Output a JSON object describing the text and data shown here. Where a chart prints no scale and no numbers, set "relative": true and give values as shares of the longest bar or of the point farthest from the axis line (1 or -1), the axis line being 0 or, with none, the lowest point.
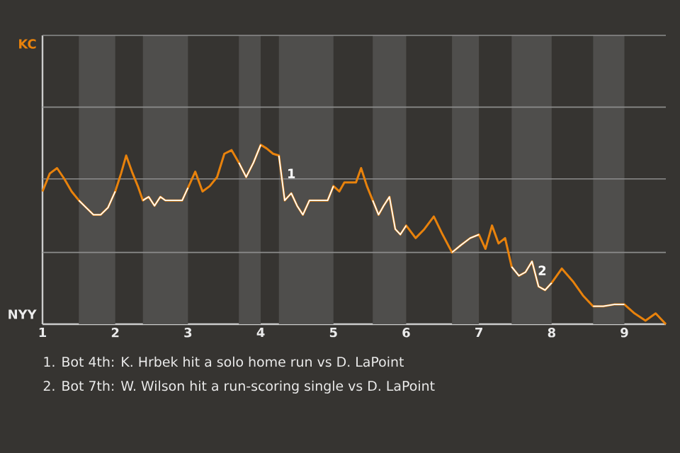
{
  "chart_data": {
    "type": "line",
    "relative": true,
    "xlim": [
      1,
      9.57
    ],
    "xticks": [
      1,
      2,
      3,
      4,
      5,
      6,
      7,
      8,
      9
    ],
    "x": [
      1,
      1.1,
      1.2,
      1.3,
      1.4,
      1.5,
      1.6,
      1.7,
      1.8,
      1.9,
      2,
      2.08,
      2.15,
      2.23,
      2.31,
      2.38,
      2.46,
      2.54,
      2.62,
      2.69,
      2.77,
      2.85,
      2.92,
      3,
      3.1,
      3.2,
      3.3,
      3.4,
      3.5,
      3.6,
      3.7,
      3.8,
      3.9,
      4,
      4.08,
      4.17,
      4.25,
      4.33,
      4.42,
      4.5,
      4.58,
      4.67,
      4.75,
      4.83,
      4.92,
      5,
      5.08,
      5.15,
      5.23,
      5.31,
      5.38,
      5.46,
      5.54,
      5.62,
      5.69,
      5.77,
      5.85,
      5.92,
      6,
      6.13,
      6.25,
      6.38,
      6.5,
      6.63,
      6.75,
      6.88,
      7,
      7.09,
      7.18,
      7.27,
      7.36,
      7.45,
      7.55,
      7.64,
      7.73,
      7.82,
      7.91,
      8,
      8.14,
      8.29,
      8.43,
      8.57,
      8.71,
      8.86,
      9,
      9.14,
      9.29,
      9.43,
      9.57
    ],
    "marker": "none",
    "line_style": "solid",
    "ref_lines": [
      {
        "axis": "y",
        "value": 0.4,
        "color": "#8c8c8c"
      },
      {
        "axis": "y",
        "value": 0.81,
        "color": "#8c8c8c"
      },
      {
        "axis": "y",
        "value": 1.21,
        "color": "#8c8c8c"
      },
      {
        "axis": "y",
        "value": 1.61,
        "color": "#8c8c8c"
      }
    ],
    "bands": [
      {
        "axis": "x",
        "from": 1.5,
        "to": 2,
        "color": "#4f4e4c"
      },
      {
        "axis": "x",
        "from": 2.38,
        "to": 3,
        "color": "#4f4e4c"
      },
      {
        "axis": "x",
        "from": 3.7,
        "to": 4,
        "color": "#4f4e4c"
      },
      {
        "axis": "x",
        "from": 4.25,
        "to": 5,
        "color": "#4f4e4c"
      },
      {
        "axis": "x",
        "from": 5.54,
        "to": 6,
        "color": "#4f4e4c"
      },
      {
        "axis": "x",
        "from": 6.63,
        "to": 7,
        "color": "#4f4e4c"
      },
      {
        "axis": "x",
        "from": 7.45,
        "to": 8,
        "color": "#4f4e4c"
      },
      {
        "axis": "x",
        "from": 8.57,
        "to": 9,
        "color": "#4f4e4c"
      }
    ],
    "series": [
      {
        "color": "#e8820c",
        "values": [
          0.74,
          0.84,
          0.87,
          0.81,
          0.74,
          0.69,
          0.65,
          0.61,
          0.61,
          0.65,
          0.74,
          0.84,
          0.94,
          0.85,
          0.77,
          0.69,
          0.71,
          0.66,
          0.71,
          0.69,
          0.69,
          0.69,
          0.69,
          0.76,
          0.85,
          0.74,
          0.77,
          0.82,
          0.95,
          0.97,
          0.9,
          0.82,
          0.9,
          1,
          0.98,
          0.95,
          0.94,
          0.69,
          0.73,
          0.66,
          0.61,
          0.69,
          0.69,
          0.69,
          0.69,
          0.77,
          0.74,
          0.79,
          0.79,
          0.79,
          0.87,
          0.77,
          0.69,
          0.61,
          0.66,
          0.71,
          0.53,
          0.5,
          0.55,
          0.48,
          0.53,
          0.6,
          0.5,
          0.4,
          0.44,
          0.48,
          0.5,
          0.42,
          0.55,
          0.45,
          0.48,
          0.32,
          0.27,
          0.29,
          0.35,
          0.21,
          0.19,
          0.23,
          0.31,
          0.24,
          0.16,
          0.1,
          0.1,
          0.11,
          0.11,
          0.06,
          0.02,
          0.06,
          0
        ],
        "colors": [
          "#e8820c",
          "#e8820c",
          "#e8820c",
          "#e8820c",
          "#e8820c",
          "#ffffff",
          "#ffffff",
          "#ffffff",
          "#ffffff",
          "#ffffff",
          "#e8820c",
          "#e8820c",
          "#e8820c",
          "#e8820c",
          "#e8820c",
          "#ffffff",
          "#ffffff",
          "#ffffff",
          "#ffffff",
          "#ffffff",
          "#ffffff",
          "#ffffff",
          "#ffffff",
          "#e8820c",
          "#e8820c",
          "#e8820c",
          "#e8820c",
          "#e8820c",
          "#e8820c",
          "#e8820c",
          "#ffffff",
          "#ffffff",
          "#ffffff",
          "#e8820c",
          "#e8820c",
          "#e8820c",
          "#ffffff",
          "#ffffff",
          "#ffffff",
          "#ffffff",
          "#ffffff",
          "#ffffff",
          "#ffffff",
          "#ffffff",
          "#ffffff",
          "#e8820c",
          "#e8820c",
          "#e8820c",
          "#e8820c",
          "#e8820c",
          "#e8820c",
          "#e8820c",
          "#ffffff",
          "#ffffff",
          "#ffffff",
          "#ffffff",
          "#ffffff",
          "#ffffff",
          "#e8820c",
          "#e8820c",
          "#e8820c",
          "#e8820c",
          "#e8820c",
          "#ffffff",
          "#ffffff",
          "#ffffff",
          "#e8820c",
          "#e8820c",
          "#e8820c",
          "#e8820c",
          "#e8820c",
          "#ffffff",
          "#ffffff",
          "#ffffff",
          "#ffffff",
          "#ffffff",
          "#ffffff",
          "#e8820c",
          "#e8820c",
          "#e8820c",
          "#e8820c",
          "#ffffff",
          "#ffffff",
          "#ffffff",
          "#e8820c",
          "#e8820c",
          "#e8820c",
          "#e8820c",
          "#e8820c"
        ]
      }
    ],
    "annotations": [
      "KC",
      "NYY",
      {
        "text": "1",
        "x": 4.42,
        "y": 0.84
      },
      {
        "text": "2",
        "x": 7.87,
        "y": 0.3
      },
      "1. Bot 4th: K. Hrbek hit a solo home run vs D. LaPoint",
      "2. Bot 7th: W. Wilson hit a run-scoring single vs D. LaPoint"
    ]
  }
}
